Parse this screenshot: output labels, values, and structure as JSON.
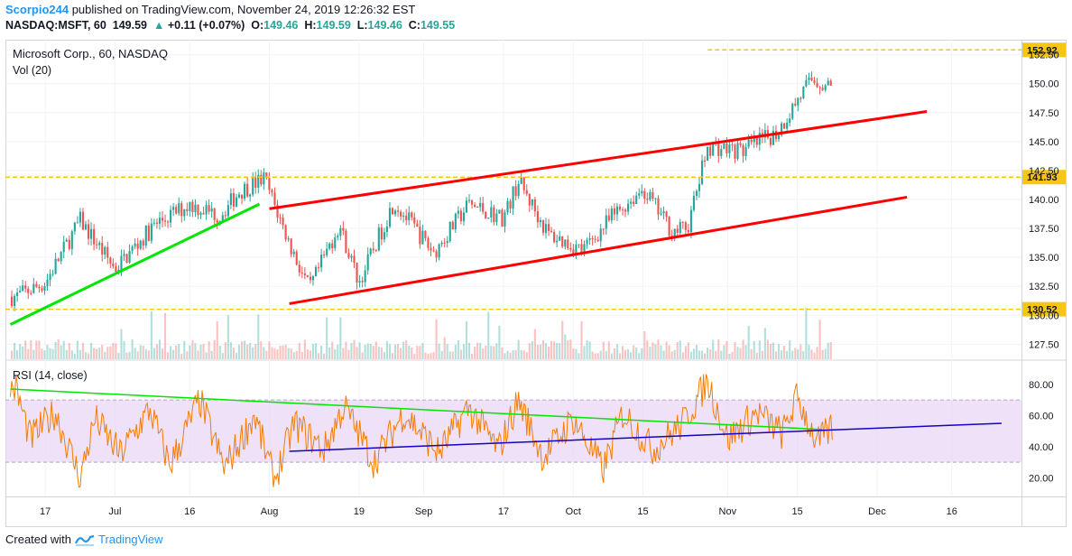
{
  "header": {
    "user": "Scorpio244",
    "published": " published on TradingView.com, November 24, 2019 12:26:32 EST",
    "symbol": "NASDAQ:MSFT, 60",
    "last": "149.59",
    "arrow": "▲",
    "change": "+0.11 (+0.07%)",
    "o_label": "O:",
    "o_value": "149.46",
    "h_label": "H:",
    "h_value": "149.59",
    "l_label": "L:",
    "l_value": "149.46",
    "c_label": "C:",
    "c_value": "149.55"
  },
  "footer": {
    "created_with": "Created with",
    "brand": "TradingView"
  },
  "colors": {
    "up": "#26a69a",
    "down": "#ef5350",
    "trend_red": "#ff0000",
    "trend_green": "#00e600",
    "trend_blue": "#1400c8",
    "level": "#f5c518",
    "rsi_line": "#f57c00",
    "rsi_band": "#e8d7f5",
    "badge": "#f5c518"
  },
  "chart_data": [
    {
      "type": "line",
      "title": "Microsoft Corp., 60, NASDAQ",
      "volume_label": "Vol (20)",
      "x_ticks": [
        "17",
        "Jul",
        "16",
        "Aug",
        "19",
        "Sep",
        "17",
        "Oct",
        "15",
        "Nov",
        "15",
        "Dec",
        "16"
      ],
      "y_ticks": [
        "127.50",
        "130.00",
        "132.50",
        "135.00",
        "137.50",
        "140.00",
        "142.50",
        "145.00",
        "147.50",
        "150.00",
        "152.50"
      ],
      "ylim": [
        126.2,
        153.8
      ],
      "price_levels": [
        152.92,
        141.93,
        130.52
      ],
      "series": [
        {
          "x": [
            "Jun 11",
            "Jun 17",
            "Jun 24",
            "Jul 1",
            "Jul 9",
            "Jul 16",
            "Jul 22",
            "Jul 26",
            "Jul 31",
            "Aug 5",
            "Aug 9",
            "Aug 15",
            "Aug 19",
            "Aug 26",
            "Sep 3",
            "Sep 10",
            "Sep 17",
            "Sep 20",
            "Sep 26",
            "Oct 3",
            "Oct 9",
            "Oct 15",
            "Oct 21",
            "Oct 24",
            "Oct 28",
            "Nov 4",
            "Nov 11",
            "Nov 15",
            "Nov 18",
            "Nov 22"
          ],
          "values": [
            131.6,
            132.8,
            138.2,
            134.0,
            137.8,
            139.6,
            138.6,
            140.7,
            141.8,
            136.2,
            132.2,
            137.8,
            132.8,
            139.8,
            135.4,
            139.6,
            138.4,
            141.6,
            137.0,
            135.6,
            138.6,
            140.9,
            137.2,
            137.6,
            144.6,
            144.2,
            145.8,
            148.6,
            150.4,
            149.6
          ]
        }
      ],
      "trendlines": [
        {
          "name": "green",
          "from": [
            "Jun 10",
            129.2
          ],
          "to": [
            "Jul 30",
            139.6
          ]
        },
        {
          "name": "upper-channel",
          "from": [
            "Aug 1",
            139.2
          ],
          "to": [
            "Dec 11",
            147.6
          ]
        },
        {
          "name": "lower-channel",
          "from": [
            "Aug 5",
            131.0
          ],
          "to": [
            "Dec 7",
            140.2
          ]
        }
      ]
    },
    {
      "type": "line",
      "title": "RSI (14, close)",
      "y_ticks": [
        "20.00",
        "40.00",
        "60.00",
        "80.00"
      ],
      "ylim": [
        8,
        95
      ],
      "band": [
        30,
        70
      ],
      "series": [
        {
          "x": [
            "Jun 11",
            "Jun 14",
            "Jun 19",
            "Jun 24",
            "Jun 27",
            "Jul 2",
            "Jul 8",
            "Jul 12",
            "Jul 18",
            "Jul 23",
            "Jul 29",
            "Aug 2",
            "Aug 6",
            "Aug 12",
            "Aug 16",
            "Aug 22",
            "Aug 28",
            "Sep 4",
            "Sep 10",
            "Sep 16",
            "Sep 20",
            "Sep 25",
            "Oct 1",
            "Oct 7",
            "Oct 11",
            "Oct 17",
            "Oct 23",
            "Oct 28",
            "Nov 1",
            "Nov 7",
            "Nov 12",
            "Nov 15",
            "Nov 19",
            "Nov 22"
          ],
          "values": [
            78,
            45,
            62,
            20,
            58,
            35,
            64,
            28,
            70,
            26,
            60,
            18,
            55,
            38,
            66,
            30,
            62,
            36,
            65,
            38,
            70,
            33,
            58,
            25,
            62,
            38,
            55,
            82,
            45,
            62,
            48,
            72,
            42,
            52
          ]
        }
      ],
      "trendlines": [
        {
          "name": "green",
          "from": [
            "Jun 10",
            77
          ],
          "to": [
            "Nov 20",
            51
          ]
        },
        {
          "name": "blue",
          "from": [
            "Aug 5",
            37
          ],
          "to": [
            "Dec 26",
            55
          ]
        }
      ]
    }
  ]
}
